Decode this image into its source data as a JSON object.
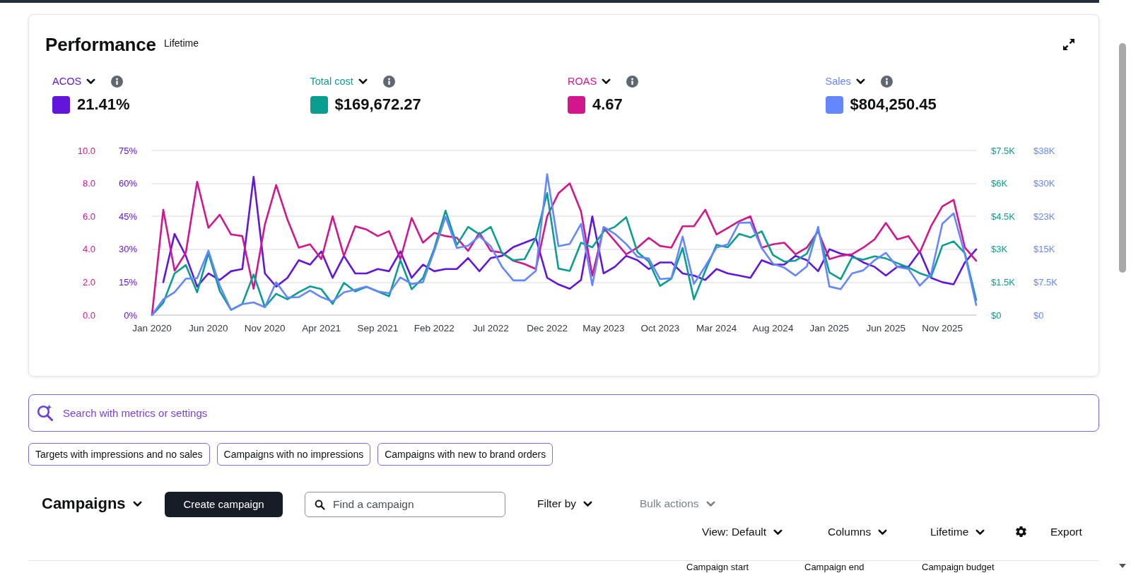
{
  "chart_data": [
    {
      "type": "line",
      "title": "Performance",
      "subtitle": "Lifetime",
      "categories": [
        "Jan 2020",
        null,
        null,
        null,
        null,
        "Jun 2020",
        null,
        null,
        null,
        null,
        "Nov 2020",
        null,
        null,
        null,
        null,
        "Apr 2021",
        null,
        null,
        null,
        null,
        "Sep 2021",
        null,
        null,
        null,
        null,
        "Feb 2022",
        null,
        null,
        null,
        null,
        "Jul 2022",
        null,
        null,
        null,
        null,
        "Dec 2022",
        null,
        null,
        null,
        null,
        "May 2023",
        null,
        null,
        null,
        null,
        "Oct 2023",
        null,
        null,
        null,
        null,
        "Mar 2024",
        null,
        null,
        null,
        null,
        "Aug 2024",
        null,
        null,
        null,
        null,
        "Jan 2025",
        null,
        null,
        null,
        null,
        "Jun 2025",
        null,
        null,
        null,
        null,
        "Nov 2025",
        null,
        null,
        null
      ],
      "series": [
        {
          "name": "ACOS",
          "color": "#6216db",
          "values": [
            null,
            15,
            37,
            27,
            13,
            19,
            16,
            20,
            21,
            63,
            19,
            13,
            17,
            25,
            23,
            29,
            17,
            27,
            19,
            19,
            21,
            20,
            29,
            17,
            23,
            20,
            21,
            21,
            26,
            20,
            26,
            27,
            31,
            33,
            35,
            17,
            14,
            12,
            16,
            45,
            19,
            22,
            27,
            25,
            21,
            24,
            24,
            19,
            18,
            16,
            21,
            19,
            18,
            17,
            25,
            23,
            23,
            27,
            25,
            20,
            30,
            28,
            27,
            24,
            22,
            18,
            22,
            22,
            29,
            17,
            15,
            14,
            24,
            30
          ]
        },
        {
          "name": "ROAS",
          "color": "#d1168e",
          "axis": "y3",
          "values": [
            0,
            6.4,
            2.7,
            3.8,
            8.1,
            5.3,
            6.1,
            4.9,
            4.8,
            1.6,
            5.5,
            7.9,
            5.8,
            4.1,
            4.3,
            3.4,
            6.0,
            3.6,
            5.4,
            5.2,
            4.8,
            5.1,
            3.4,
            5.9,
            4.4,
            5.0,
            4.8,
            4.7,
            3.9,
            5.0,
            3.9,
            3.8,
            3.3,
            3.1,
            2.8,
            6.0,
            7.4,
            8.0,
            6.3,
            2.4,
            5.3,
            4.5,
            3.7,
            4.1,
            4.7,
            4.2,
            4.1,
            5.4,
            5.4,
            6.4,
            4.9,
            5.3,
            5.7,
            6.0,
            4.1,
            4.3,
            4.4,
            3.7,
            4.1,
            5.1,
            3.4,
            3.6,
            3.7,
            4.1,
            4.6,
            5.6,
            4.6,
            4.8,
            3.8,
            5.4,
            6.6,
            7.0,
            4.1,
            3.3
          ]
        }
      ],
      "ylim": [
        0,
        75
      ],
      "yticks": [
        {
          "value": 0,
          "label": "0%"
        },
        {
          "value": 15,
          "label": "15%"
        },
        {
          "value": 30,
          "label": "30%"
        },
        {
          "value": 45,
          "label": "45%"
        },
        {
          "value": 60,
          "label": "60%"
        },
        {
          "value": 75,
          "label": "75%"
        }
      ],
      "y3lim": [
        0,
        10
      ],
      "y3ticks": [
        {
          "value": 0,
          "label": "0.0"
        },
        {
          "value": 2,
          "label": "2.0"
        },
        {
          "value": 4,
          "label": "4.0"
        },
        {
          "value": 6,
          "label": "6.0"
        },
        {
          "value": 8,
          "label": "8.0"
        },
        {
          "value": 10,
          "label": "10.0"
        }
      ],
      "grid": "y",
      "legend": "top",
      "marker": "none",
      "line_style": "solid",
      "annotations": [
        "21.41%",
        "4.67",
        "Search with metrics or settings",
        "Targets with impressions and no sales",
        "Campaigns with no impressions",
        "Campaigns with new to brand orders",
        "Campaigns",
        "Create campaign",
        "Find a campaign",
        "Filter by",
        "Bulk actions",
        "View: Default",
        "Columns",
        "Lifetime",
        "Export",
        "Campaign start",
        "Campaign end",
        "Campaign budget"
      ]
    },
    {
      "type": "line",
      "categories": [
        null,
        null,
        null,
        null,
        null,
        null,
        null,
        null,
        null,
        null,
        null,
        null,
        null,
        null,
        null,
        null,
        null,
        null,
        null,
        null,
        null,
        null,
        null,
        null,
        null,
        null,
        null,
        null,
        null,
        null,
        null,
        null,
        null,
        null,
        null,
        null,
        null,
        null,
        null,
        null,
        null,
        null,
        null,
        null,
        null,
        null,
        null,
        null,
        null,
        null,
        null,
        null,
        null,
        null,
        null,
        null,
        null,
        null,
        null,
        null,
        null,
        null,
        null,
        null,
        null,
        null,
        null,
        null,
        null,
        null,
        null,
        null,
        null,
        null
      ],
      "series": [
        {
          "name": "Total cost",
          "color": "#0a9d91",
          "values": [
            0,
            560,
            1900,
            2280,
            1040,
            2820,
            1100,
            240,
            510,
            1850,
            370,
            970,
            720,
            1040,
            1310,
            1180,
            510,
            1470,
            1080,
            1290,
            1080,
            860,
            2500,
            1180,
            1690,
            3030,
            4760,
            3200,
            4020,
            3680,
            4020,
            2820,
            2500,
            2550,
            3520,
            5560,
            2120,
            2010,
            3300,
            3090,
            3810,
            4020,
            4460,
            2870,
            2440,
            1330,
            1660,
            3060,
            720,
            2010,
            3200,
            3090,
            3700,
            3540,
            3820,
            2740,
            2440,
            2480,
            2800,
            3900,
            1940,
            1640,
            2630,
            2530,
            2680,
            2580,
            2370,
            2170,
            1910,
            1740,
            3160,
            3360,
            2820,
            690
          ]
        },
        {
          "name": "Sales",
          "color": "#6487ff",
          "axis": "y2",
          "values": [
            0,
            3600,
            5200,
            8300,
            8400,
            14700,
            6700,
            1200,
            2500,
            2900,
            1800,
            7500,
            4000,
            4100,
            5600,
            4100,
            3100,
            5200,
            5800,
            6500,
            5400,
            5000,
            8600,
            7100,
            7500,
            14600,
            22400,
            15300,
            15800,
            18000,
            15700,
            11000,
            7900,
            7900,
            10100,
            32100,
            15700,
            16200,
            20800,
            6800,
            20100,
            18500,
            16200,
            13300,
            12900,
            8200,
            8400,
            17900,
            7100,
            11100,
            15400,
            16100,
            21000,
            21100,
            15300,
            11700,
            10800,
            9000,
            11100,
            20100,
            6500,
            5900,
            9500,
            10200,
            12500,
            14200,
            11000,
            10500,
            6700,
            9300,
            20800,
            23200,
            13800,
            2300
          ]
        }
      ],
      "ylim": [
        0,
        7500
      ],
      "yticks": [
        {
          "value": 0,
          "label": "$0"
        },
        {
          "value": 1500,
          "label": "$1.5K"
        },
        {
          "value": 3000,
          "label": "$3K"
        },
        {
          "value": 4500,
          "label": "$4.5K"
        },
        {
          "value": 6000,
          "label": "$6K"
        },
        {
          "value": 7500,
          "label": "$7.5K"
        }
      ],
      "y2lim": [
        0,
        37500
      ],
      "y2ticks": [
        {
          "value": 0,
          "label": "$0"
        },
        {
          "value": 7500,
          "label": "$7.5K"
        },
        {
          "value": 15000,
          "label": "$15K"
        },
        {
          "value": 22500,
          "label": "$23K"
        },
        {
          "value": 30000,
          "label": "$30K"
        },
        {
          "value": 37500,
          "label": "$38K"
        }
      ],
      "tick_labels": "y",
      "legend": "top",
      "marker": "none",
      "line_style": "solid",
      "annotations": [
        "$169,672.27",
        "$804,250.45"
      ]
    }
  ]
}
